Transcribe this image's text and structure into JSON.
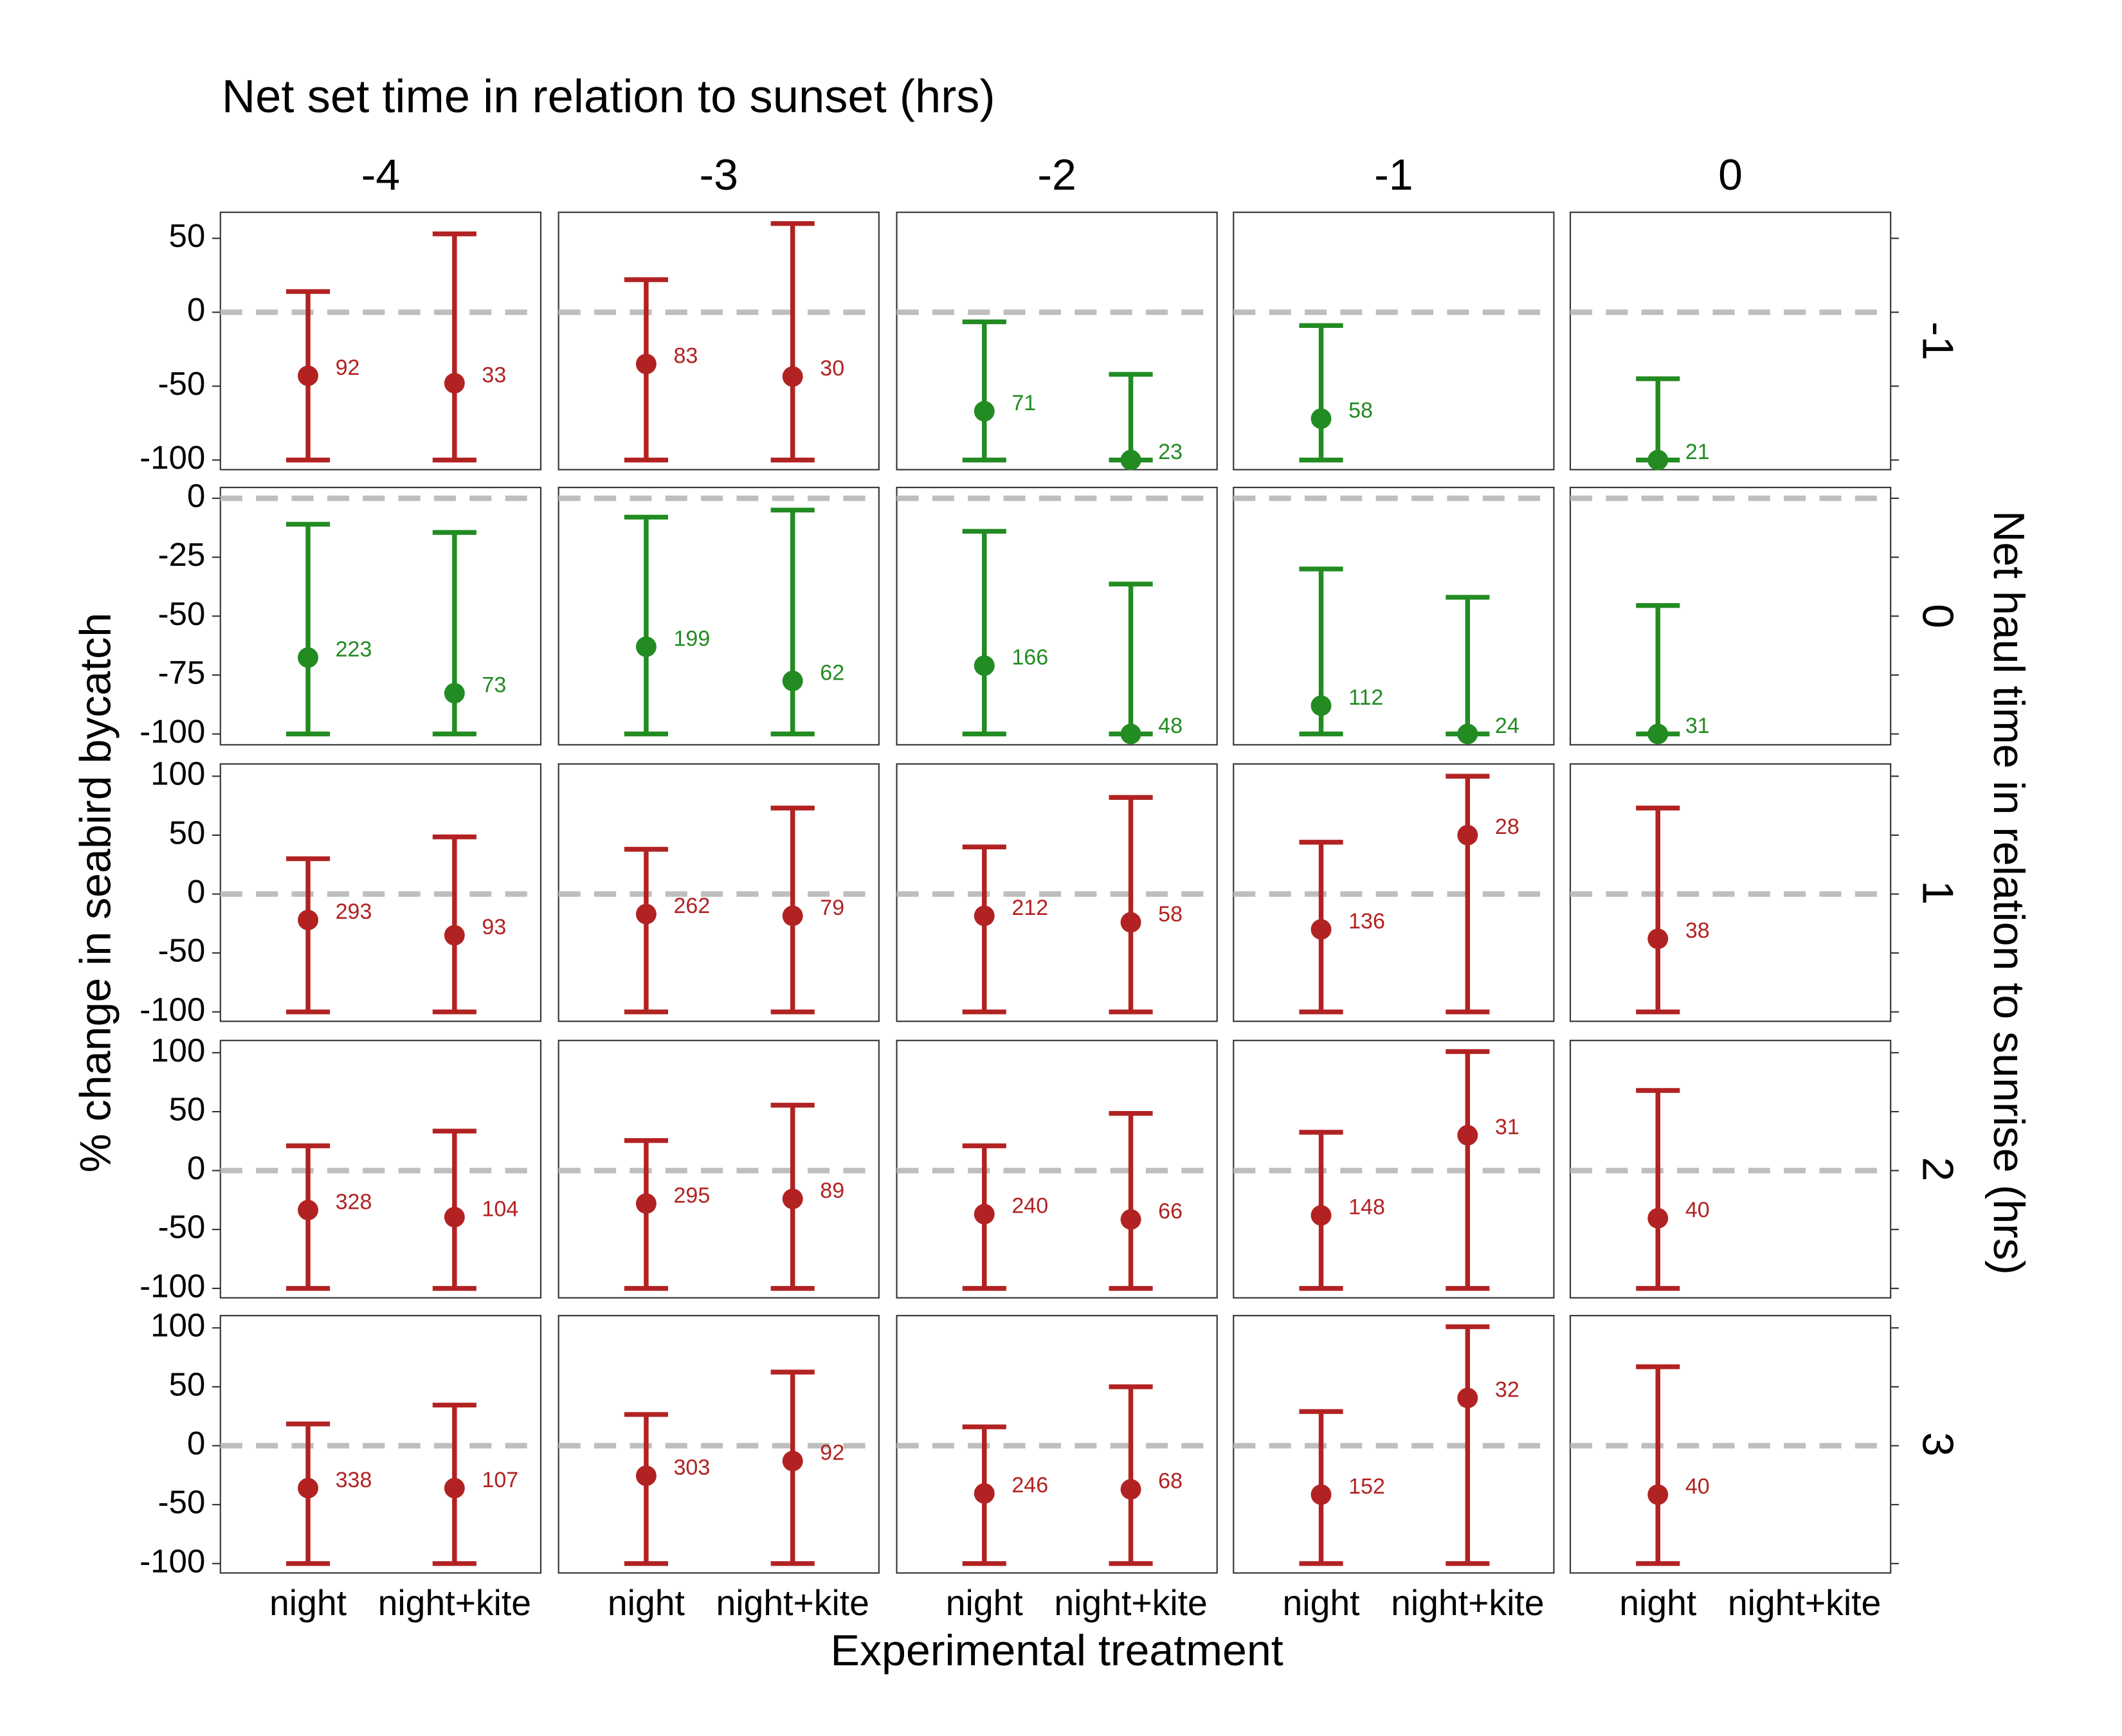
{
  "chart_data": {
    "type": "errorbar",
    "title": "Net set time in relation to sunset (hrs)",
    "x_label": "Experimental treatment",
    "y_label": "% change in seabird bycatch",
    "row_label": "Net haul time in relation to sunrise (hrs)",
    "columns": [
      -4,
      -3,
      -2,
      -1,
      0
    ],
    "categories": [
      "night",
      "night+kite"
    ],
    "reference_line": 0,
    "rows": [
      {
        "facet": -1,
        "ylim": [
          -106.5,
          67.6
        ],
        "yticks": [
          50,
          0,
          -50,
          -100
        ],
        "panels": [
          {
            "color": "#b22222",
            "values": [
              -43,
              -48
            ],
            "lower": [
              -100,
              -100
            ],
            "upper": [
              14,
              53
            ],
            "n": [
              92,
              33
            ]
          },
          {
            "color": "#b22222",
            "values": [
              -35,
              -43.5
            ],
            "lower": [
              -100,
              -100
            ],
            "upper": [
              22,
              60
            ],
            "n": [
              83,
              30
            ]
          },
          {
            "color": "#228b22",
            "values": [
              -67,
              -100
            ],
            "lower": [
              -100,
              -100
            ],
            "upper": [
              -6.5,
              -42
            ],
            "n": [
              71,
              23
            ]
          },
          {
            "color": "#228b22",
            "values": [
              -72,
              null
            ],
            "lower": [
              -100,
              null
            ],
            "upper": [
              -9,
              null
            ],
            "n": [
              58,
              null
            ]
          },
          {
            "color": "#228b22",
            "values": [
              -100,
              null
            ],
            "lower": [
              -100,
              null
            ],
            "upper": [
              -45,
              null
            ],
            "n": [
              21,
              null
            ]
          }
        ]
      },
      {
        "facet": 0,
        "ylim": [
          -104.6,
          4.6
        ],
        "yticks": [
          0,
          -25,
          -50,
          -75,
          -100
        ],
        "panels": [
          {
            "color": "#228b22",
            "values": [
              -67.6,
              -82.7
            ],
            "lower": [
              -100,
              -100
            ],
            "upper": [
              -11,
              -14.5
            ],
            "n": [
              223,
              73
            ]
          },
          {
            "color": "#228b22",
            "values": [
              -63,
              -77.5
            ],
            "lower": [
              -100,
              -100
            ],
            "upper": [
              -8,
              -5
            ],
            "n": [
              199,
              62
            ]
          },
          {
            "color": "#228b22",
            "values": [
              -71,
              -100
            ],
            "lower": [
              -100,
              -100
            ],
            "upper": [
              -14,
              -36.4
            ],
            "n": [
              166,
              48
            ]
          },
          {
            "color": "#228b22",
            "values": [
              -88,
              -100
            ],
            "lower": [
              -100,
              -100
            ],
            "upper": [
              -30,
              -42
            ],
            "n": [
              112,
              24
            ]
          },
          {
            "color": "#228b22",
            "values": [
              -100,
              null
            ],
            "lower": [
              -100,
              null
            ],
            "upper": [
              -45.5,
              null
            ],
            "n": [
              31,
              null
            ]
          }
        ]
      },
      {
        "facet": 1,
        "ylim": [
          -108,
          110.4
        ],
        "yticks": [
          100,
          50,
          0,
          -50,
          -100
        ],
        "panels": [
          {
            "color": "#b22222",
            "values": [
              -22,
              -35
            ],
            "lower": [
              -100,
              -100
            ],
            "upper": [
              30,
              48.5
            ],
            "n": [
              293,
              93
            ]
          },
          {
            "color": "#b22222",
            "values": [
              -17,
              -18.5
            ],
            "lower": [
              -100,
              -100
            ],
            "upper": [
              38,
              73
            ],
            "n": [
              262,
              79
            ]
          },
          {
            "color": "#b22222",
            "values": [
              -18.5,
              -24
            ],
            "lower": [
              -100,
              -100
            ],
            "upper": [
              40,
              82
            ],
            "n": [
              212,
              58
            ]
          },
          {
            "color": "#b22222",
            "values": [
              -30,
              50
            ],
            "lower": [
              -100,
              -100
            ],
            "upper": [
              44,
              100
            ],
            "n": [
              136,
              28
            ]
          },
          {
            "color": "#b22222",
            "values": [
              -38,
              null
            ],
            "lower": [
              -100,
              null
            ],
            "upper": [
              73,
              null
            ],
            "n": [
              38,
              null
            ]
          }
        ]
      },
      {
        "facet": 2,
        "ylim": [
          -108,
          110.4
        ],
        "yticks": [
          100,
          50,
          0,
          -50,
          -100
        ],
        "panels": [
          {
            "color": "#b22222",
            "values": [
              -33.5,
              -39.5
            ],
            "lower": [
              -100,
              -100
            ],
            "upper": [
              21,
              33.5
            ],
            "n": [
              328,
              104
            ]
          },
          {
            "color": "#b22222",
            "values": [
              -28,
              -24
            ],
            "lower": [
              -100,
              -100
            ],
            "upper": [
              25.5,
              55.5
            ],
            "n": [
              295,
              89
            ]
          },
          {
            "color": "#b22222",
            "values": [
              -37,
              -41.5
            ],
            "lower": [
              -100,
              -100
            ],
            "upper": [
              21,
              48.5
            ],
            "n": [
              240,
              66
            ]
          },
          {
            "color": "#b22222",
            "values": [
              -38,
              30
            ],
            "lower": [
              -100,
              -100
            ],
            "upper": [
              32.5,
              101
            ],
            "n": [
              148,
              31
            ]
          },
          {
            "color": "#b22222",
            "values": [
              -40.5,
              null
            ],
            "lower": [
              -100,
              null
            ],
            "upper": [
              68,
              null
            ],
            "n": [
              40,
              null
            ]
          }
        ]
      },
      {
        "facet": 3,
        "ylim": [
          -108,
          110.4
        ],
        "yticks": [
          100,
          50,
          0,
          -50,
          -100
        ],
        "panels": [
          {
            "color": "#b22222",
            "values": [
              -36,
              -36
            ],
            "lower": [
              -100,
              -100
            ],
            "upper": [
              18.5,
              34.5
            ],
            "n": [
              338,
              107
            ]
          },
          {
            "color": "#b22222",
            "values": [
              -25.5,
              -13
            ],
            "lower": [
              -100,
              -100
            ],
            "upper": [
              26.5,
              62.5
            ],
            "n": [
              303,
              92
            ]
          },
          {
            "color": "#b22222",
            "values": [
              -40.5,
              -37
            ],
            "lower": [
              -100,
              -100
            ],
            "upper": [
              16,
              50
            ],
            "n": [
              246,
              68
            ]
          },
          {
            "color": "#b22222",
            "values": [
              -41.5,
              40.5
            ],
            "lower": [
              -100,
              -100
            ],
            "upper": [
              29,
              101
            ],
            "n": [
              152,
              32
            ]
          },
          {
            "color": "#b22222",
            "values": [
              -41.5,
              null
            ],
            "lower": [
              -100,
              null
            ],
            "upper": [
              67,
              null
            ],
            "n": [
              40,
              null
            ]
          }
        ]
      }
    ]
  }
}
